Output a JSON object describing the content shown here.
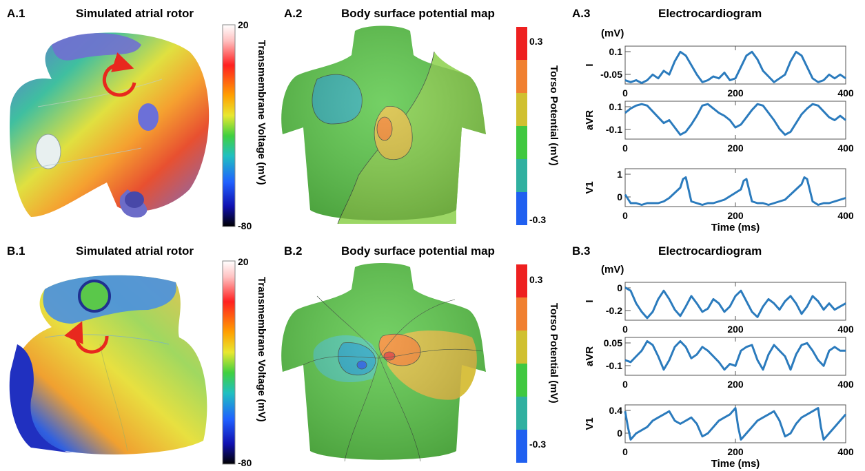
{
  "rows": [
    {
      "atrium": {
        "label": "A.1",
        "title": "Simulated atrial rotor"
      },
      "voltage_colorbar": {
        "max": "20",
        "min": "-80",
        "title": "Transmembrane  Voltage (mV)"
      },
      "bspm": {
        "label": "A.2",
        "title": "Body surface potential map"
      },
      "torso_colorbar": {
        "max": "0.3",
        "min": "-0.3",
        "title": "Torso Potential (mV)"
      },
      "ecg": {
        "label": "A.3",
        "title": "Electrocardiogram",
        "unit": "(mV)",
        "xlabel": "Time (ms)",
        "x_ticks": [
          "0",
          "200",
          "400"
        ],
        "leads": [
          {
            "name": "I",
            "y_ticks": [
              "0.1",
              "-0.05"
            ]
          },
          {
            "name": "aVR",
            "y_ticks": [
              "0.1",
              "-0.1"
            ]
          },
          {
            "name": "V1",
            "y_ticks": [
              "1",
              "0"
            ]
          }
        ]
      }
    },
    {
      "atrium": {
        "label": "B.1",
        "title": "Simulated atrial rotor"
      },
      "voltage_colorbar": {
        "max": "20",
        "min": "-80",
        "title": "Transmembrane  Voltage (mV)"
      },
      "bspm": {
        "label": "B.2",
        "title": "Body surface potential map"
      },
      "torso_colorbar": {
        "max": "0.3",
        "min": "-0.3",
        "title": "Torso Potential (mV)"
      },
      "ecg": {
        "label": "B.3",
        "title": "Electrocardiogram",
        "unit": "(mV)",
        "xlabel": "Time (ms)",
        "x_ticks": [
          "0",
          "200",
          "400"
        ],
        "leads": [
          {
            "name": "I",
            "y_ticks": [
              "0",
              "-0.2"
            ]
          },
          {
            "name": "aVR",
            "y_ticks": [
              "0.05",
              "-0.1"
            ]
          },
          {
            "name": "V1",
            "y_ticks": [
              "0.4",
              "0"
            ]
          }
        ]
      }
    }
  ],
  "chart_data": [
    {
      "type": "line",
      "title": "Electrocardiogram",
      "xlabel": "Time (ms)",
      "ylabel": "I",
      "xlim": [
        0,
        400
      ],
      "ylim": [
        -0.07,
        0.13
      ],
      "x": [
        0,
        10,
        20,
        30,
        40,
        50,
        60,
        70,
        80,
        90,
        100,
        110,
        120,
        130,
        140,
        150,
        160,
        170,
        180,
        190,
        200,
        210,
        220,
        230,
        240,
        250,
        260,
        270,
        280,
        290,
        300,
        310,
        320,
        330,
        340,
        350,
        360,
        370,
        380,
        390,
        400
      ],
      "series": [
        {
          "values": [
            -0.05,
            -0.06,
            -0.05,
            -0.065,
            -0.05,
            -0.02,
            -0.04,
            0.0,
            -0.02,
            0.05,
            0.1,
            0.08,
            0.03,
            -0.02,
            -0.06,
            -0.05,
            -0.03,
            -0.04,
            -0.01,
            -0.05,
            -0.04,
            0.02,
            0.08,
            0.1,
            0.06,
            0.0,
            -0.03,
            -0.06,
            -0.04,
            -0.02,
            0.05,
            0.1,
            0.08,
            0.02,
            -0.04,
            -0.06,
            -0.05,
            -0.02,
            -0.04,
            -0.02,
            -0.04
          ]
        }
      ]
    },
    {
      "type": "line",
      "title": "",
      "xlabel": "",
      "ylabel": "aVR",
      "xlim": [
        0,
        400
      ],
      "ylim": [
        -0.13,
        0.13
      ],
      "x": [
        0,
        10,
        20,
        30,
        40,
        50,
        60,
        70,
        80,
        90,
        100,
        110,
        120,
        130,
        140,
        150,
        160,
        170,
        180,
        190,
        200,
        210,
        220,
        230,
        240,
        250,
        260,
        270,
        280,
        290,
        300,
        310,
        320,
        330,
        340,
        350,
        360,
        370,
        380,
        390,
        400
      ],
      "series": [
        {
          "values": [
            0.05,
            0.08,
            0.1,
            0.11,
            0.1,
            0.06,
            0.02,
            -0.02,
            0.0,
            -0.05,
            -0.1,
            -0.08,
            -0.03,
            0.03,
            0.1,
            0.11,
            0.08,
            0.05,
            0.03,
            0.0,
            -0.05,
            -0.03,
            0.02,
            0.07,
            0.11,
            0.1,
            0.05,
            0.0,
            -0.06,
            -0.1,
            -0.08,
            -0.02,
            0.04,
            0.08,
            0.11,
            0.1,
            0.06,
            0.02,
            0.0,
            0.03,
            0.0
          ]
        }
      ]
    },
    {
      "type": "line",
      "title": "",
      "xlabel": "Time (ms)",
      "ylabel": "V1",
      "xlim": [
        0,
        400
      ],
      "ylim": [
        -0.1,
        1.0
      ],
      "x": [
        0,
        10,
        20,
        30,
        40,
        50,
        60,
        70,
        80,
        90,
        100,
        105,
        110,
        120,
        130,
        140,
        150,
        160,
        170,
        180,
        190,
        200,
        210,
        215,
        220,
        230,
        240,
        250,
        260,
        270,
        280,
        290,
        300,
        310,
        320,
        325,
        330,
        340,
        350,
        360,
        370,
        380,
        390,
        400
      ],
      "series": [
        {
          "values": [
            0.25,
            0.0,
            0.0,
            -0.05,
            0.0,
            0.0,
            0.0,
            0.05,
            0.15,
            0.3,
            0.45,
            0.7,
            0.75,
            0.05,
            0.0,
            -0.05,
            0.0,
            0.0,
            0.05,
            0.1,
            0.2,
            0.3,
            0.4,
            0.65,
            0.7,
            0.05,
            0.0,
            0.0,
            -0.05,
            0.0,
            0.05,
            0.1,
            0.25,
            0.4,
            0.55,
            0.75,
            0.7,
            0.05,
            -0.05,
            0.0,
            0.0,
            0.05,
            0.1,
            0.15
          ]
        }
      ]
    },
    {
      "type": "line",
      "title": "Electrocardiogram",
      "xlabel": "Time (ms)",
      "ylabel": "I",
      "xlim": [
        0,
        400
      ],
      "ylim": [
        -0.28,
        0.08
      ],
      "x": [
        0,
        10,
        20,
        30,
        40,
        50,
        60,
        70,
        80,
        90,
        100,
        110,
        120,
        130,
        140,
        150,
        160,
        170,
        180,
        190,
        200,
        210,
        220,
        230,
        240,
        250,
        260,
        270,
        280,
        290,
        300,
        310,
        320,
        330,
        340,
        350,
        360,
        370,
        380,
        390,
        400
      ],
      "series": [
        {
          "values": [
            0.03,
            0.0,
            -0.12,
            -0.2,
            -0.26,
            -0.2,
            -0.08,
            0.0,
            -0.08,
            -0.18,
            -0.24,
            -0.15,
            -0.05,
            -0.12,
            -0.2,
            -0.17,
            -0.08,
            -0.12,
            -0.2,
            -0.15,
            -0.05,
            0.0,
            -0.1,
            -0.2,
            -0.25,
            -0.15,
            -0.08,
            -0.12,
            -0.18,
            -0.1,
            -0.05,
            -0.12,
            -0.22,
            -0.15,
            -0.05,
            -0.1,
            -0.18,
            -0.12,
            -0.18,
            -0.15,
            -0.12
          ]
        }
      ]
    },
    {
      "type": "line",
      "title": "",
      "xlabel": "",
      "ylabel": "aVR",
      "xlim": [
        0,
        400
      ],
      "ylim": [
        -0.13,
        0.07
      ],
      "x": [
        0,
        10,
        20,
        30,
        40,
        50,
        60,
        70,
        80,
        90,
        100,
        110,
        120,
        130,
        140,
        150,
        160,
        170,
        180,
        190,
        200,
        210,
        220,
        230,
        240,
        250,
        260,
        270,
        280,
        290,
        300,
        310,
        320,
        330,
        340,
        350,
        360,
        370,
        380,
        390,
        400
      ],
      "series": [
        {
          "values": [
            -0.05,
            -0.06,
            -0.03,
            0.0,
            0.05,
            0.03,
            -0.03,
            -0.1,
            -0.05,
            0.02,
            0.05,
            0.02,
            -0.04,
            -0.02,
            0.02,
            0.0,
            -0.03,
            -0.06,
            -0.1,
            -0.07,
            -0.08,
            0.0,
            0.02,
            0.03,
            -0.05,
            -0.1,
            -0.02,
            0.03,
            0.0,
            -0.03,
            -0.1,
            -0.02,
            0.03,
            0.04,
            0.0,
            -0.05,
            -0.08,
            0.0,
            0.02,
            0.0,
            0.0
          ]
        }
      ]
    },
    {
      "type": "line",
      "title": "",
      "xlabel": "Time (ms)",
      "ylabel": "V1",
      "xlim": [
        0,
        400
      ],
      "ylim": [
        -0.05,
        0.55
      ],
      "x": [
        0,
        5,
        10,
        20,
        30,
        40,
        50,
        60,
        70,
        80,
        90,
        100,
        110,
        120,
        130,
        140,
        150,
        160,
        170,
        180,
        190,
        200,
        205,
        210,
        220,
        230,
        240,
        250,
        260,
        270,
        280,
        290,
        300,
        310,
        320,
        330,
        340,
        350,
        355,
        360,
        370,
        380,
        390,
        400
      ],
      "series": [
        {
          "values": [
            0.45,
            0.2,
            0.0,
            0.1,
            0.15,
            0.2,
            0.3,
            0.35,
            0.4,
            0.45,
            0.3,
            0.25,
            0.3,
            0.35,
            0.25,
            0.05,
            0.1,
            0.2,
            0.3,
            0.35,
            0.4,
            0.5,
            0.2,
            0.0,
            0.1,
            0.2,
            0.3,
            0.35,
            0.4,
            0.45,
            0.3,
            0.05,
            0.1,
            0.25,
            0.35,
            0.4,
            0.45,
            0.5,
            0.2,
            0.0,
            0.1,
            0.2,
            0.3,
            0.4
          ]
        }
      ]
    }
  ]
}
